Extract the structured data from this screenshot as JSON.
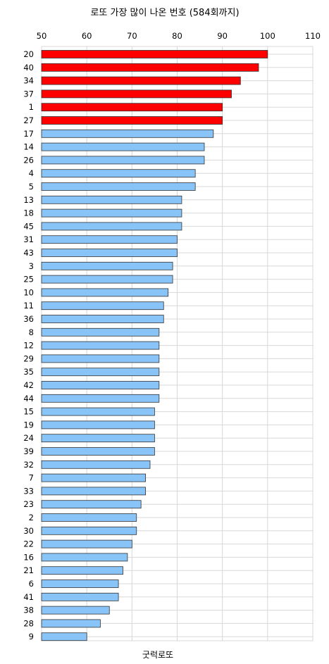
{
  "chart_data": {
    "type": "bar",
    "orientation": "horizontal",
    "title": "로또 가장 많이 나온 번호 (584회까지)",
    "footer": "굿럭로또",
    "xlim": [
      50,
      110
    ],
    "xticks": [
      50,
      60,
      70,
      80,
      90,
      100,
      110
    ],
    "x_axis_position": "top",
    "grid": true,
    "categories": [
      "20",
      "40",
      "34",
      "37",
      "1",
      "27",
      "17",
      "14",
      "26",
      "4",
      "5",
      "13",
      "18",
      "45",
      "31",
      "43",
      "3",
      "25",
      "10",
      "11",
      "36",
      "8",
      "12",
      "29",
      "35",
      "42",
      "44",
      "15",
      "19",
      "24",
      "39",
      "32",
      "7",
      "33",
      "23",
      "2",
      "30",
      "22",
      "16",
      "21",
      "6",
      "41",
      "38",
      "28",
      "9"
    ],
    "values": [
      100,
      98,
      94,
      92,
      90,
      90,
      88,
      86,
      86,
      84,
      84,
      81,
      81,
      81,
      80,
      80,
      79,
      79,
      78,
      77,
      77,
      76,
      76,
      76,
      76,
      76,
      76,
      75,
      75,
      75,
      75,
      74,
      73,
      73,
      72,
      71,
      71,
      70,
      69,
      68,
      67,
      67,
      65,
      63,
      60
    ],
    "colors": {
      "highlight": "#ff0000",
      "normal": "#88c4f8",
      "border": "#333333",
      "grid": "#d8d8d8"
    },
    "highlight_count": 6
  }
}
